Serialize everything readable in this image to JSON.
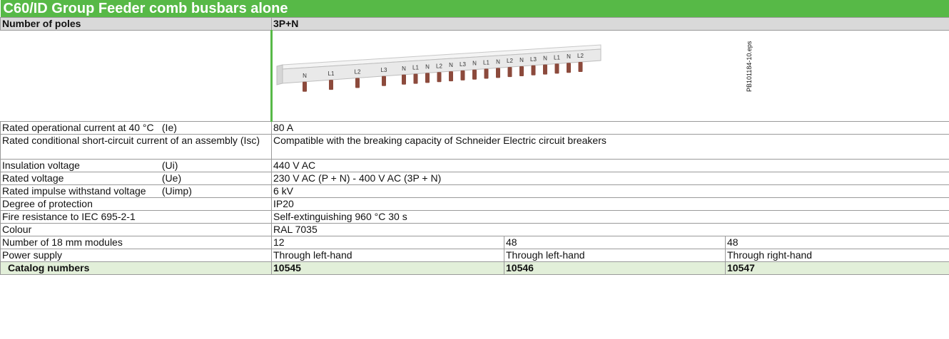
{
  "title": "C60/ID Group Feeder comb busbars alone",
  "header": {
    "label": "Number of poles",
    "value": "3P+N"
  },
  "image": {
    "pole_labels": [
      "N",
      "L1",
      "L2",
      "L3",
      "N",
      "L1",
      "N",
      "L2",
      "N",
      "L3",
      "N",
      "L1",
      "N",
      "L2",
      "N",
      "L3",
      "N",
      "L1",
      "N",
      "L2"
    ],
    "file": "PB101184-10.eps"
  },
  "rows": [
    {
      "label": "Rated operational current at 40 °C",
      "symbol": "(Ie)",
      "values": [
        "80 A"
      ]
    },
    {
      "label": "Rated conditional short-circuit current of an assembly",
      "symbol": "(Isc)",
      "values": [
        "Compatible with the breaking capacity of Schneider Electric circuit breakers"
      ]
    },
    {
      "label": "Insulation voltage",
      "symbol": "(Ui)",
      "values": [
        "440 V AC"
      ]
    },
    {
      "label": "Rated voltage",
      "symbol": "(Ue)",
      "values": [
        "230 V AC (P + N) - 400 V AC (3P + N)"
      ]
    },
    {
      "label": "Rated impulse withstand voltage",
      "symbol": "(Uimp)",
      "values": [
        "6 kV"
      ]
    },
    {
      "label": "Degree of protection",
      "values": [
        "IP20"
      ]
    },
    {
      "label": "Fire resistance to IEC 695-2-1",
      "values": [
        "Self-extinguishing 960 °C 30 s"
      ]
    },
    {
      "label": "Colour",
      "values": [
        "RAL 7035"
      ]
    },
    {
      "label": "Number of 18 mm modules",
      "values": [
        "12",
        "48",
        "48"
      ]
    },
    {
      "label": "Power supply",
      "values": [
        "Through left-hand",
        "Through left-hand",
        "Through right-hand"
      ]
    }
  ],
  "catalog": {
    "label": "Catalog numbers",
    "values": [
      "10545",
      "10546",
      "10547"
    ]
  }
}
